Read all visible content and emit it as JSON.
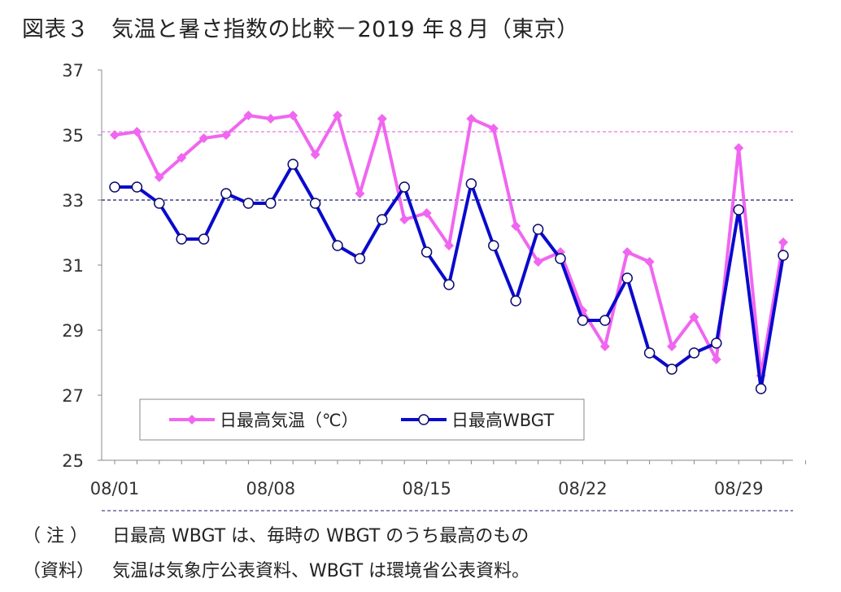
{
  "title": "図表３　気温と暑さ指数の比較－2019 年８月（東京）",
  "chart_data": {
    "type": "line",
    "title": "図表３　気温と暑さ指数の比較－2019 年８月（東京）",
    "xlabel": "",
    "ylabel": "",
    "ylim": [
      25,
      37
    ],
    "yticks": [
      "25",
      "27",
      "29",
      "31",
      "33",
      "35",
      "37"
    ],
    "xlim": [
      1,
      32
    ],
    "xticks": [
      {
        "day": 1,
        "label": "08/01"
      },
      {
        "day": 8,
        "label": "08/08"
      },
      {
        "day": 15,
        "label": "08/15"
      },
      {
        "day": 22,
        "label": "08/22"
      },
      {
        "day": 29,
        "label": "08/29"
      }
    ],
    "grid": false,
    "legend": "bottom-left",
    "reference_lines": [
      {
        "y": 35.1,
        "color": "#e377e8",
        "style": "dashed"
      },
      {
        "y": 33.0,
        "color": "#1a1a6e",
        "style": "dashed"
      }
    ],
    "x": [
      1,
      2,
      3,
      4,
      5,
      6,
      7,
      8,
      9,
      10,
      11,
      12,
      13,
      14,
      15,
      16,
      17,
      18,
      19,
      20,
      21,
      22,
      23,
      24,
      25,
      26,
      27,
      28,
      29,
      30,
      31
    ],
    "series": [
      {
        "name": "日最高気温（℃）",
        "color": "#f066f0",
        "marker": "diamond",
        "values": [
          35.0,
          35.1,
          33.7,
          34.3,
          34.9,
          35.0,
          35.6,
          35.5,
          35.6,
          34.4,
          35.6,
          33.2,
          35.5,
          32.4,
          32.6,
          31.6,
          35.5,
          35.2,
          32.2,
          31.1,
          31.4,
          29.6,
          28.5,
          31.4,
          31.1,
          28.5,
          29.4,
          28.1,
          34.6,
          27.6,
          31.7
        ]
      },
      {
        "name": "日最高WBGT",
        "color": "#0a0acc",
        "marker": "circle",
        "values": [
          33.4,
          33.4,
          32.9,
          31.8,
          31.8,
          33.2,
          32.9,
          32.9,
          34.1,
          32.9,
          31.6,
          31.2,
          32.4,
          33.4,
          31.4,
          30.4,
          33.5,
          31.6,
          29.9,
          32.1,
          31.2,
          29.3,
          29.3,
          30.6,
          28.3,
          27.8,
          28.3,
          28.6,
          32.7,
          27.2,
          31.3
        ]
      }
    ]
  },
  "notes": [
    {
      "key": "（ 注 ）",
      "text": "日最高 WBGT は、毎時の WBGT のうち最高のもの"
    },
    {
      "key": "（資料）",
      "text": "気温は気象庁公表資料、WBGT は環境省公表資料。"
    }
  ]
}
